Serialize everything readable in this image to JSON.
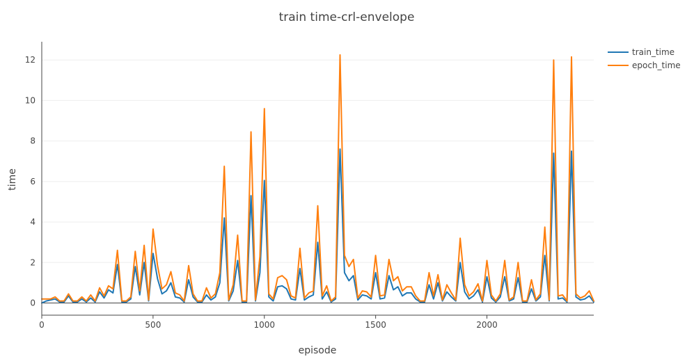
{
  "chart_data": {
    "type": "line",
    "title": "train time-crl-envelope",
    "xlabel": "episode",
    "ylabel": "time",
    "xlim": [
      0,
      2480
    ],
    "ylim": [
      -0.6,
      12.9
    ],
    "xticks": [
      0,
      500,
      1000,
      1500,
      2000
    ],
    "yticks": [
      0,
      2,
      4,
      6,
      8,
      10,
      12
    ],
    "grid": true,
    "legend_position": "top-right",
    "x": [
      0,
      20,
      40,
      60,
      80,
      100,
      120,
      140,
      160,
      180,
      200,
      220,
      240,
      260,
      280,
      300,
      320,
      340,
      360,
      380,
      400,
      420,
      440,
      460,
      480,
      500,
      520,
      540,
      560,
      580,
      600,
      620,
      640,
      660,
      680,
      700,
      720,
      740,
      760,
      780,
      800,
      820,
      840,
      860,
      880,
      900,
      920,
      940,
      960,
      980,
      1000,
      1020,
      1040,
      1060,
      1080,
      1100,
      1120,
      1140,
      1160,
      1180,
      1200,
      1220,
      1240,
      1260,
      1280,
      1300,
      1320,
      1340,
      1360,
      1380,
      1400,
      1420,
      1440,
      1460,
      1480,
      1500,
      1520,
      1540,
      1560,
      1580,
      1600,
      1620,
      1640,
      1660,
      1680,
      1700,
      1720,
      1740,
      1760,
      1780,
      1800,
      1820,
      1840,
      1860,
      1880,
      1900,
      1920,
      1940,
      1960,
      1980,
      2000,
      2020,
      2040,
      2060,
      2080,
      2100,
      2120,
      2140,
      2160,
      2180,
      2200,
      2220,
      2240,
      2260,
      2280,
      2300,
      2320,
      2340,
      2360,
      2380,
      2400,
      2420,
      2440,
      2460,
      2480
    ],
    "series": [
      {
        "name": "train_time",
        "color": "#1f77b4",
        "values": [
          0.0,
          0.1,
          0.15,
          0.2,
          0.05,
          0.05,
          0.35,
          0.05,
          0.05,
          0.2,
          0.05,
          0.25,
          0.05,
          0.55,
          0.25,
          0.65,
          0.5,
          1.9,
          0.05,
          0.05,
          0.2,
          1.8,
          0.4,
          2.0,
          0.1,
          2.45,
          1.2,
          0.45,
          0.6,
          1.0,
          0.3,
          0.25,
          0.05,
          1.15,
          0.3,
          0.05,
          0.05,
          0.4,
          0.15,
          0.3,
          1.0,
          4.2,
          0.1,
          0.6,
          2.1,
          0.05,
          0.05,
          5.3,
          0.1,
          1.5,
          6.05,
          0.3,
          0.1,
          0.8,
          0.85,
          0.7,
          0.2,
          0.15,
          1.7,
          0.15,
          0.3,
          0.4,
          3.0,
          0.2,
          0.55,
          0.05,
          0.2,
          7.6,
          1.5,
          1.1,
          1.35,
          0.15,
          0.4,
          0.35,
          0.2,
          1.5,
          0.2,
          0.25,
          1.35,
          0.65,
          0.8,
          0.35,
          0.5,
          0.5,
          0.2,
          0.05,
          0.05,
          0.9,
          0.2,
          1.0,
          0.1,
          0.55,
          0.3,
          0.1,
          2.0,
          0.55,
          0.2,
          0.35,
          0.65,
          0.05,
          1.3,
          0.25,
          0.05,
          0.3,
          1.3,
          0.1,
          0.2,
          1.25,
          0.05,
          0.05,
          0.7,
          0.1,
          0.3,
          2.35,
          0.1,
          7.4,
          0.2,
          0.25,
          0.05,
          7.5,
          0.3,
          0.15,
          0.2,
          0.35,
          0.05
        ]
      },
      {
        "name": "epoch_time",
        "color": "#ff7f0e",
        "values": [
          0.2,
          0.2,
          0.2,
          0.3,
          0.1,
          0.1,
          0.45,
          0.1,
          0.1,
          0.3,
          0.1,
          0.4,
          0.1,
          0.75,
          0.35,
          0.85,
          0.7,
          2.6,
          0.1,
          0.1,
          0.3,
          2.55,
          0.6,
          2.85,
          0.15,
          3.65,
          1.85,
          0.7,
          0.9,
          1.55,
          0.5,
          0.4,
          0.1,
          1.85,
          0.45,
          0.1,
          0.1,
          0.75,
          0.25,
          0.45,
          1.5,
          6.75,
          0.15,
          0.9,
          3.35,
          0.1,
          0.1,
          8.45,
          0.15,
          2.3,
          9.6,
          0.45,
          0.2,
          1.25,
          1.35,
          1.15,
          0.35,
          0.25,
          2.7,
          0.25,
          0.5,
          0.6,
          4.8,
          0.35,
          0.85,
          0.1,
          0.3,
          12.25,
          2.35,
          1.8,
          2.15,
          0.25,
          0.6,
          0.55,
          0.3,
          2.35,
          0.35,
          0.4,
          2.15,
          1.1,
          1.3,
          0.6,
          0.8,
          0.8,
          0.35,
          0.1,
          0.1,
          1.5,
          0.35,
          1.4,
          0.15,
          0.9,
          0.5,
          0.15,
          3.2,
          0.9,
          0.35,
          0.55,
          0.95,
          0.1,
          2.1,
          0.4,
          0.1,
          0.45,
          2.1,
          0.15,
          0.3,
          2.0,
          0.1,
          0.1,
          1.15,
          0.15,
          0.45,
          3.75,
          0.15,
          12.0,
          0.35,
          0.4,
          0.1,
          12.15,
          0.45,
          0.25,
          0.35,
          0.6,
          0.1
        ]
      }
    ]
  }
}
